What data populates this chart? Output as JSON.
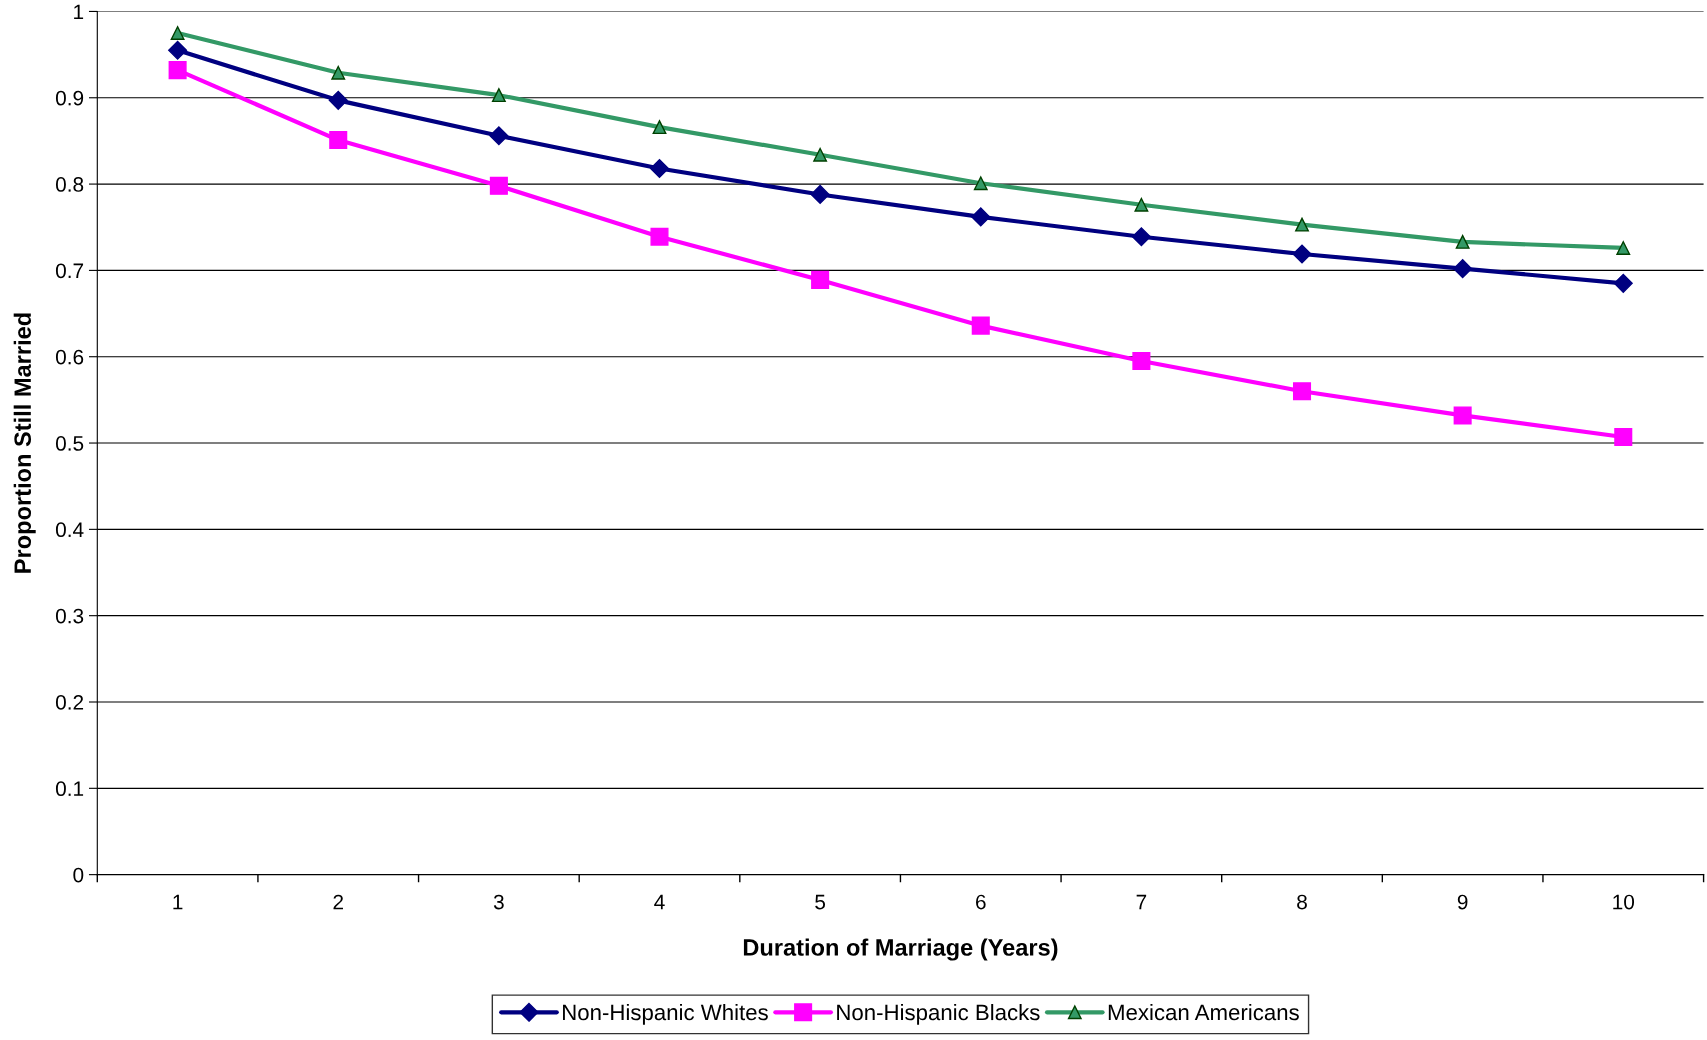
{
  "chart_data": {
    "type": "line",
    "xlabel": "Duration of Marriage (Years)",
    "ylabel": "Proportion Still Married",
    "categories": [
      "1",
      "2",
      "3",
      "4",
      "5",
      "6",
      "7",
      "8",
      "9",
      "10"
    ],
    "series": [
      {
        "name": "Non-Hispanic Whites",
        "color": "#000080",
        "marker": "diamond",
        "values": [
          0.955,
          0.897,
          0.856,
          0.818,
          0.788,
          0.762,
          0.739,
          0.719,
          0.702,
          0.685
        ]
      },
      {
        "name": "Non-Hispanic Blacks",
        "color": "#ff00ff",
        "marker": "square",
        "values": [
          0.932,
          0.851,
          0.798,
          0.739,
          0.689,
          0.636,
          0.595,
          0.56,
          0.532,
          0.507
        ]
      },
      {
        "name": "Mexican Americans",
        "color": "#339966",
        "marker": "triangle",
        "values": [
          0.975,
          0.929,
          0.903,
          0.866,
          0.834,
          0.801,
          0.776,
          0.753,
          0.733,
          0.726
        ]
      }
    ],
    "ylim": [
      0,
      1
    ],
    "yticks": [
      0,
      0.1,
      0.2,
      0.3,
      0.4,
      0.5,
      0.6,
      0.7,
      0.8,
      0.9,
      1
    ],
    "grid": "y",
    "legend": "bottom",
    "line_style": "solid"
  }
}
